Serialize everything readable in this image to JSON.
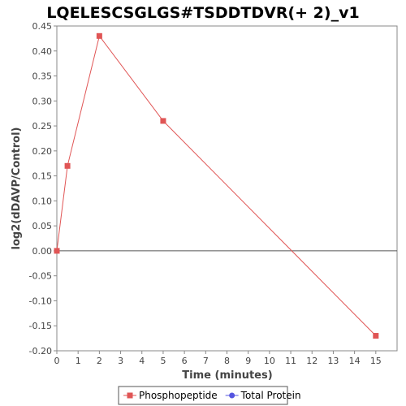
{
  "chart_data": {
    "type": "line",
    "title": "LQELESCSGLGS#TSDDTDVR(+ 2)_v1",
    "xlabel": "Time (minutes)",
    "ylabel": "log2(dDAVP/Control)",
    "xlim": [
      0,
      16
    ],
    "ylim": [
      -0.2,
      0.45
    ],
    "x_ticks": [
      0,
      1,
      2,
      3,
      4,
      5,
      6,
      7,
      8,
      9,
      10,
      11,
      12,
      13,
      14,
      15
    ],
    "y_ticks": [
      -0.2,
      -0.15,
      -0.1,
      -0.05,
      0.0,
      0.05,
      0.1,
      0.15,
      0.2,
      0.25,
      0.3,
      0.35,
      0.4,
      0.45
    ],
    "y_tick_labels": [
      "-0.20",
      "-0.15",
      "-0.10",
      "-0.05",
      "0.00",
      "0.05",
      "0.10",
      "0.15",
      "0.20",
      "0.25",
      "0.30",
      "0.35",
      "0.40",
      "0.45"
    ],
    "grid": false,
    "zero_line": true,
    "legend_position": "bottom",
    "series": [
      {
        "name": "Phosphopeptide",
        "color": "#e05555",
        "marker": "square",
        "x": [
          0,
          0.5,
          2,
          5,
          15
        ],
        "values": [
          0.0,
          0.17,
          0.43,
          0.26,
          -0.17
        ]
      },
      {
        "name": "Total Protein",
        "color": "#5555e0",
        "marker": "circle",
        "x": [],
        "values": []
      }
    ]
  }
}
